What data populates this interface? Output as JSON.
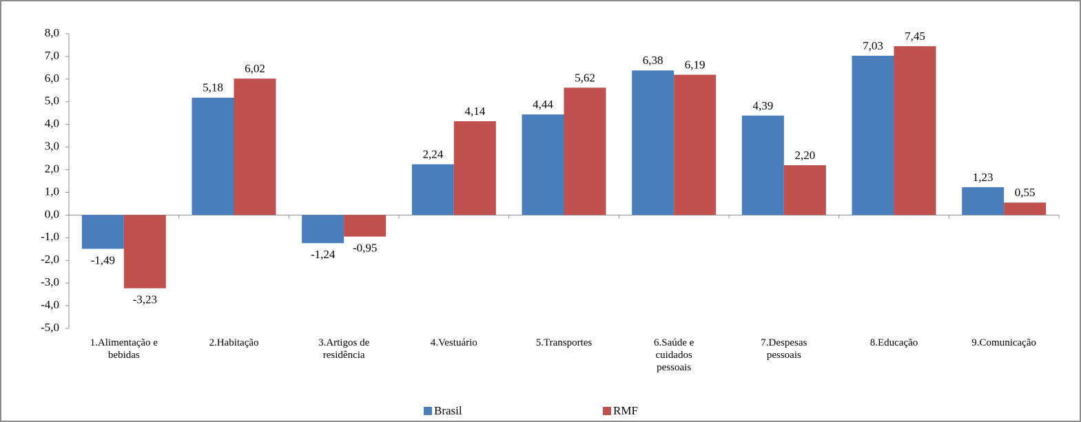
{
  "chart_data": {
    "type": "bar",
    "categories": [
      "1.Alimentação e bebidas",
      "2.Habitação",
      "3.Artigos de residência",
      "4.Vestuário",
      "5.Transportes",
      "6.Saúde e cuidados pessoais",
      "7.Despesas pessoais",
      "8.Educação",
      "9.Comunicação"
    ],
    "series": [
      {
        "name": "Brasil",
        "color": "#4a7ebb",
        "values": [
          -1.49,
          5.18,
          -1.24,
          2.24,
          4.44,
          6.38,
          4.39,
          7.03,
          1.23
        ],
        "value_labels": [
          "-1,49",
          "5,18",
          "-1,24",
          "2,24",
          "4,44",
          "6,38",
          "4,39",
          "7,03",
          "1,23"
        ]
      },
      {
        "name": "RMF",
        "color": "#c0504d",
        "values": [
          -3.23,
          6.02,
          -0.95,
          4.14,
          5.62,
          6.19,
          2.2,
          7.45,
          0.55
        ],
        "value_labels": [
          "-3,23",
          "6,02",
          "-0,95",
          "4,14",
          "5,62",
          "6,19",
          "2,20",
          "7,45",
          "0,55"
        ]
      }
    ],
    "ylim": [
      -5,
      8
    ],
    "yticks": [
      {
        "value": 8,
        "label": "8,0"
      },
      {
        "value": 7,
        "label": "7,0"
      },
      {
        "value": 6,
        "label": "6,0"
      },
      {
        "value": 5,
        "label": "5,0"
      },
      {
        "value": 4,
        "label": "4,0"
      },
      {
        "value": 3,
        "label": "3,0"
      },
      {
        "value": 2,
        "label": "2,0"
      },
      {
        "value": 1,
        "label": "1,0"
      },
      {
        "value": 0,
        "label": "0,0"
      },
      {
        "value": -1,
        "label": "-1,0"
      },
      {
        "value": -2,
        "label": "-2,0"
      },
      {
        "value": -3,
        "label": "-3,0"
      },
      {
        "value": -4,
        "label": "-4,0"
      },
      {
        "value": -5,
        "label": "-5,0"
      }
    ],
    "negative_value_label_color": "#ff0000",
    "legend": "bottom"
  }
}
